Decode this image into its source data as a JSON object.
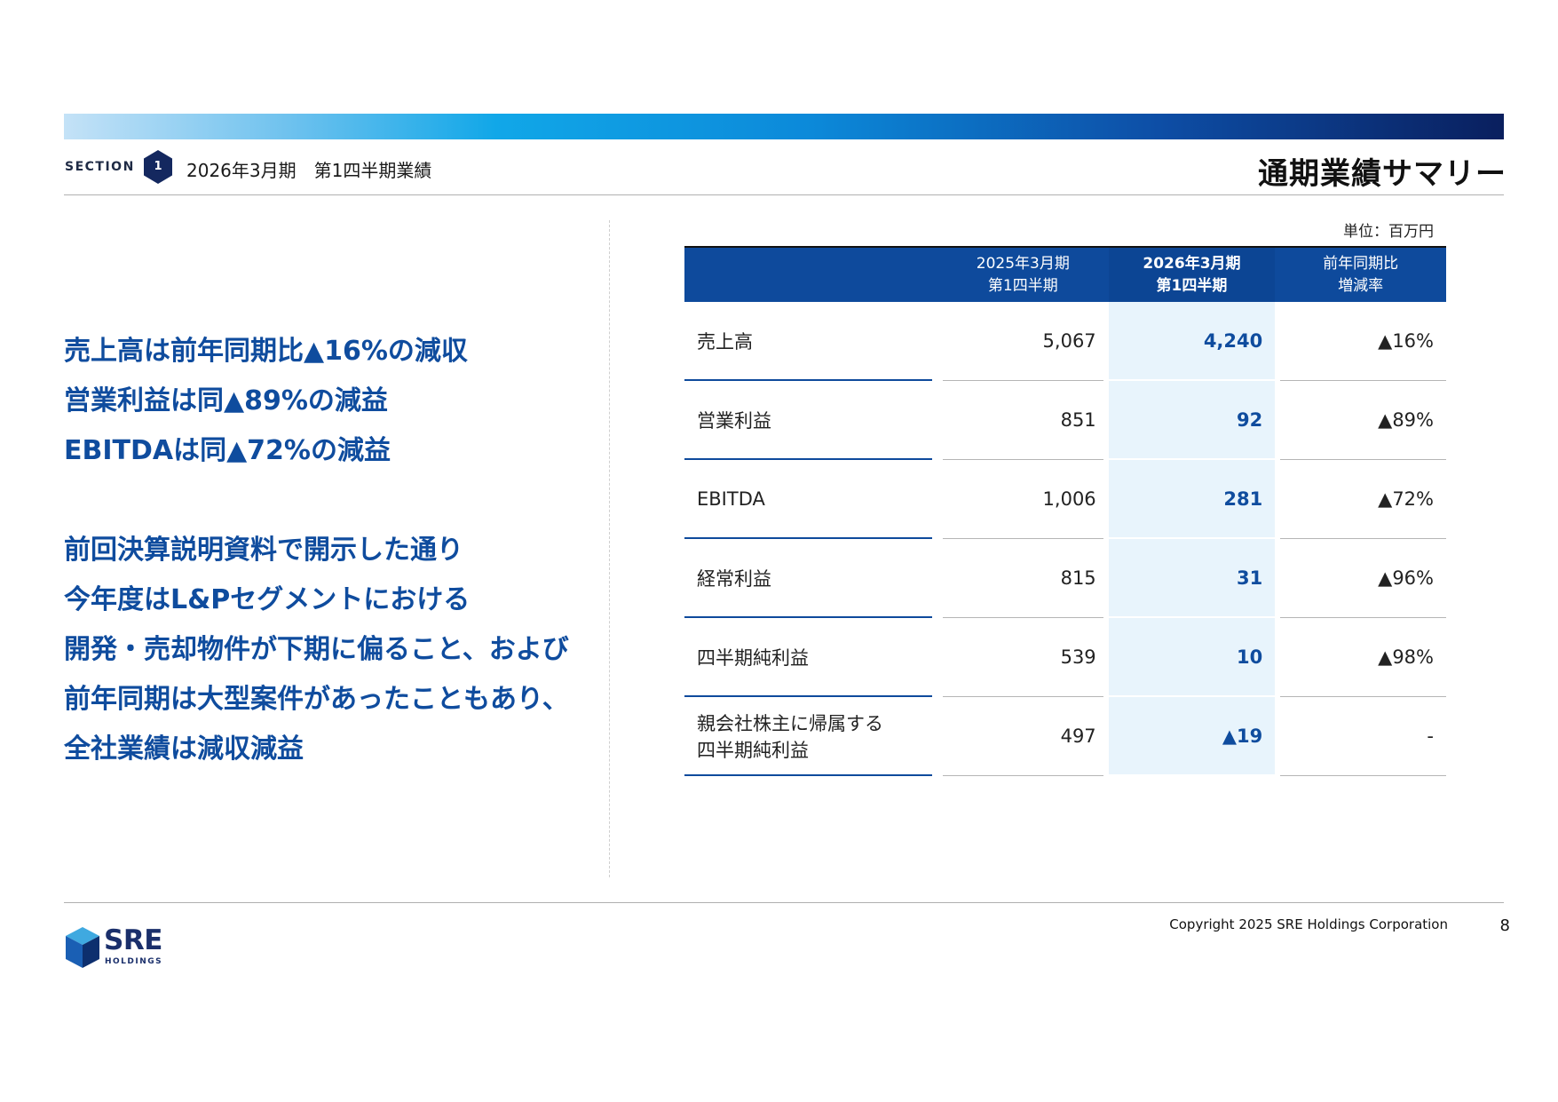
{
  "header": {
    "section_label": "SECTION",
    "section_number": "1",
    "section_title": "2026年3月期　第1四半期業績",
    "page_title": "通期業績サマリー"
  },
  "left": {
    "highlights": [
      "売上高は前年同期比▲16%の減収",
      "営業利益は同▲89%の減益",
      "EBITDAは同▲72%の減益"
    ],
    "explanation": [
      "前回決算説明資料で開示した通り",
      "今年度はL&Pセグメントにおける",
      "開発・売却物件が下期に偏ること、および",
      "前年同期は大型案件があったこともあり、",
      "全社業績は減収減益"
    ]
  },
  "table": {
    "unit": "単位：百万円",
    "columns": {
      "prev_line1": "2025年3月期",
      "prev_line2": "第1四半期",
      "cur_line1": "2026年3月期",
      "cur_line2": "第1四半期",
      "rate_line1": "前年同期比",
      "rate_line2": "増減率"
    },
    "rows": [
      {
        "label": "売上高",
        "label2": "",
        "prev": "5,067",
        "cur": "4,240",
        "rate": "▲16%"
      },
      {
        "label": "営業利益",
        "label2": "",
        "prev": "851",
        "cur": "92",
        "rate": "▲89%"
      },
      {
        "label": "EBITDA",
        "label2": "",
        "prev": "1,006",
        "cur": "281",
        "rate": "▲72%"
      },
      {
        "label": "経常利益",
        "label2": "",
        "prev": "815",
        "cur": "31",
        "rate": "▲96%"
      },
      {
        "label": "四半期純利益",
        "label2": "",
        "prev": "539",
        "cur": "10",
        "rate": "▲98%"
      },
      {
        "label": "親会社株主に帰属する",
        "label2": "四半期純利益",
        "prev": "497",
        "cur": "▲19",
        "rate": "-"
      }
    ]
  },
  "footer": {
    "logo_text": "SRE",
    "logo_sub": "HOLDINGS",
    "copyright": "Copyright 2025 SRE Holdings Corporation",
    "page_number": "8"
  },
  "colors": {
    "brand_blue": "#0e4a9c",
    "highlight_text": "#0f4c9e",
    "current_column_bg": "#e8f4fc"
  }
}
